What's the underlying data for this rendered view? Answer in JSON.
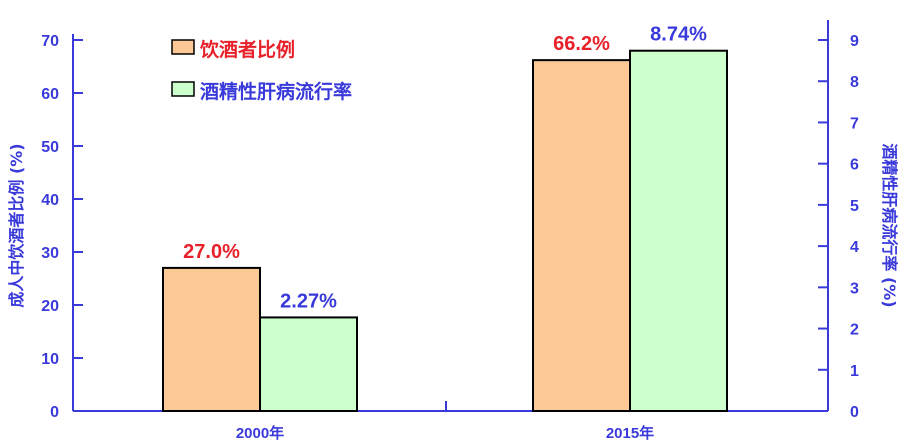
{
  "chart_data": {
    "type": "bar",
    "categories": [
      "2000年",
      "2015年"
    ],
    "series": [
      {
        "name": "饮酒者比例",
        "values": [
          27.0,
          66.2
        ],
        "labels": [
          "27.0%",
          "66.2%"
        ],
        "axis": "left",
        "color": "#FBC896",
        "label_color": "#E8202A"
      },
      {
        "name": "酒精性肝病流行率",
        "values": [
          2.27,
          8.74
        ],
        "labels": [
          "2.27%",
          "8.74%"
        ],
        "axis": "right",
        "color": "#CCFFCC",
        "label_color": "#3A3ADB"
      }
    ],
    "ylabel": "成人中饮酒者比例 (%)",
    "y2label": "酒精性肝病流行率 (%)",
    "ylim": [
      0,
      70
    ],
    "y2lim": [
      0,
      9
    ],
    "yticks": [
      0,
      10,
      20,
      30,
      40,
      50,
      60,
      70
    ],
    "y2ticks": [
      0,
      1,
      2,
      3,
      4,
      5,
      6,
      7,
      8,
      9
    ],
    "legend_position": "top-left",
    "grid": false,
    "axis_color": "#3A3ADB"
  }
}
